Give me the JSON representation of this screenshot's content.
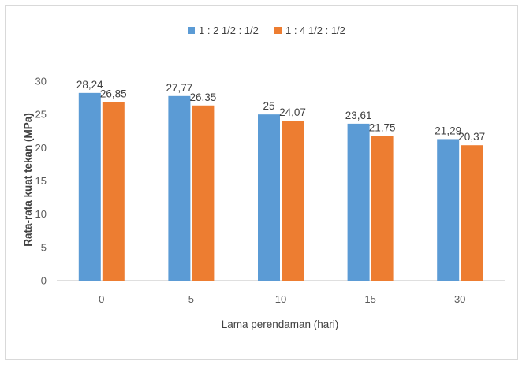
{
  "chart_data": {
    "type": "bar",
    "categories": [
      "0",
      "5",
      "10",
      "15",
      "30"
    ],
    "series": [
      {
        "name": "1 : 2 1/2 : 1/2",
        "values": [
          28.24,
          27.77,
          25,
          23.61,
          21.29
        ],
        "labels": [
          "28,24",
          "27,77",
          "25",
          "23,61",
          "21,29"
        ],
        "color": "#5b9bd5"
      },
      {
        "name": "1 : 4 1/2 : 1/2",
        "values": [
          26.85,
          26.35,
          24.07,
          21.75,
          20.37
        ],
        "labels": [
          "26,85",
          "26,35",
          "24,07",
          "21,75",
          "20,37"
        ],
        "color": "#ed7d31"
      }
    ],
    "xlabel": "Lama perendaman (hari)",
    "ylabel": "Rata-rata kuat tekan  (MPa)",
    "ylim": [
      0,
      30
    ],
    "yticks": [
      "0",
      "5",
      "10",
      "15",
      "20",
      "25",
      "30"
    ],
    "grid": false,
    "legend_position": "top"
  }
}
